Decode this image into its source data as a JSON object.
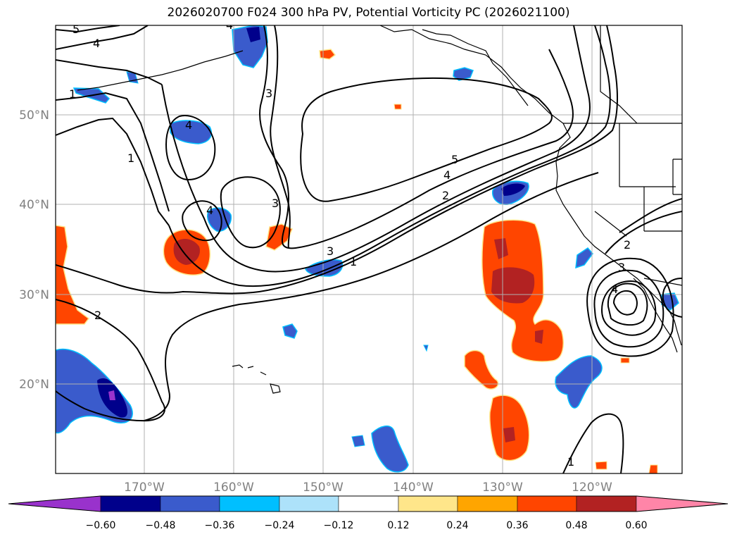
{
  "title": "2026020700 F024 300 hPa PV, Potential Vorticity PC (2026021100)",
  "latitudes": [
    "50°N",
    "40°N",
    "30°N",
    "20°N"
  ],
  "longitudes": [
    "170°W",
    "160°W",
    "150°W",
    "140°W",
    "130°W",
    "120°W"
  ],
  "contour_labels": [
    "5",
    "4",
    "1",
    "3",
    "4",
    "4",
    "1",
    "3",
    "4",
    "3",
    "1",
    "2",
    "5",
    "4",
    "2",
    "2",
    "3",
    "4",
    "1"
  ],
  "colorbar": {
    "ticks": [
      "−0.60",
      "−0.48",
      "−0.36",
      "−0.24",
      "−0.12",
      "0.12",
      "0.24",
      "0.36",
      "0.48",
      "0.60"
    ],
    "colors": [
      "#9932CC",
      "#00008B",
      "#3A5BCC",
      "#00BFFF",
      "#ADE2FA",
      "#FFFFFF",
      "#FFE68A",
      "#FFA500",
      "#FF4500",
      "#B22222",
      "#FF85A8"
    ]
  }
}
